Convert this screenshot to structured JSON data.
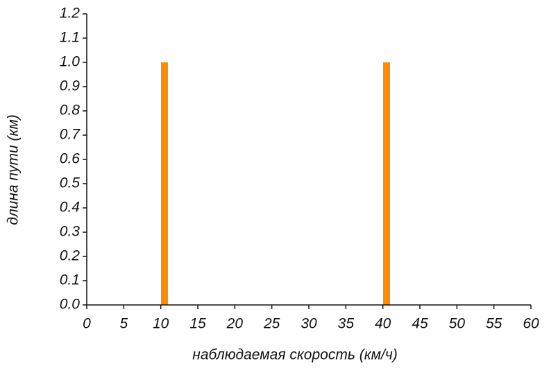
{
  "chart_data": {
    "type": "bar",
    "x_label": "наблюдаемая скорость (км/ч)",
    "y_label": "длина пути (км)",
    "x": [
      10.5,
      40.5
    ],
    "values": [
      1.0,
      1.0
    ],
    "color": "#ff8c00",
    "xlim": [
      0,
      60
    ],
    "xticks": [
      0,
      5,
      10,
      15,
      20,
      25,
      30,
      35,
      40,
      45,
      50,
      55,
      60
    ],
    "ylim": [
      0,
      1.2
    ],
    "yticks": [
      {
        "value": 0,
        "label": "0.0"
      },
      0.1,
      0.2,
      0.3,
      0.4,
      0.5,
      0.6,
      0.7,
      0.8,
      0.9,
      {
        "value": 1,
        "label": "1.0"
      },
      1.1,
      1.2
    ]
  }
}
